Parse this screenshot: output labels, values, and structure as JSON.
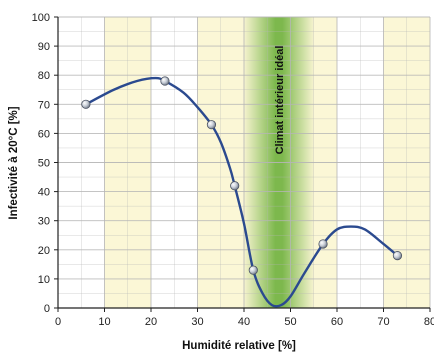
{
  "chart_data": {
    "type": "line",
    "xlabel": "Humidité relative [%]",
    "ylabel": "Infectivité à 20°C [%]",
    "xlim": [
      0,
      80
    ],
    "ylim": [
      0,
      100
    ],
    "x_ticks": [
      "0",
      "10",
      "20",
      "30",
      "40",
      "50",
      "60",
      "70",
      "80"
    ],
    "y_ticks": [
      "0",
      "10",
      "20",
      "30",
      "40",
      "50",
      "60",
      "70",
      "80",
      "90",
      "100"
    ],
    "grid": true,
    "annotation": {
      "text": "Climat intérieur idéal",
      "x_range": [
        40,
        55
      ]
    },
    "series": [
      {
        "points": [
          {
            "x": 6,
            "y": 70
          },
          {
            "x": 23,
            "y": 78
          },
          {
            "x": 33,
            "y": 63
          },
          {
            "x": 38,
            "y": 42
          },
          {
            "x": 42,
            "y": 13
          },
          {
            "x": 57,
            "y": 22
          },
          {
            "x": 73,
            "y": 18
          }
        ],
        "curve": [
          {
            "x": 6,
            "y": 70
          },
          {
            "x": 12,
            "y": 75
          },
          {
            "x": 17,
            "y": 78
          },
          {
            "x": 21,
            "y": 79
          },
          {
            "x": 23,
            "y": 78
          },
          {
            "x": 27,
            "y": 74
          },
          {
            "x": 30,
            "y": 69
          },
          {
            "x": 33,
            "y": 63
          },
          {
            "x": 35,
            "y": 57
          },
          {
            "x": 37,
            "y": 48
          },
          {
            "x": 38,
            "y": 42
          },
          {
            "x": 40,
            "y": 29
          },
          {
            "x": 42,
            "y": 13
          },
          {
            "x": 44,
            "y": 5
          },
          {
            "x": 46,
            "y": 1
          },
          {
            "x": 48,
            "y": 1
          },
          {
            "x": 50,
            "y": 4
          },
          {
            "x": 53,
            "y": 12
          },
          {
            "x": 57,
            "y": 22
          },
          {
            "x": 60,
            "y": 27
          },
          {
            "x": 63,
            "y": 28
          },
          {
            "x": 66,
            "y": 27
          },
          {
            "x": 70,
            "y": 22
          },
          {
            "x": 73,
            "y": 18
          }
        ],
        "color": "#2b4a8f"
      }
    ],
    "colors": {
      "band_yellow": "#fbf7d6",
      "band_green": "#7db84d",
      "grid": "#b5b5b5"
    }
  }
}
